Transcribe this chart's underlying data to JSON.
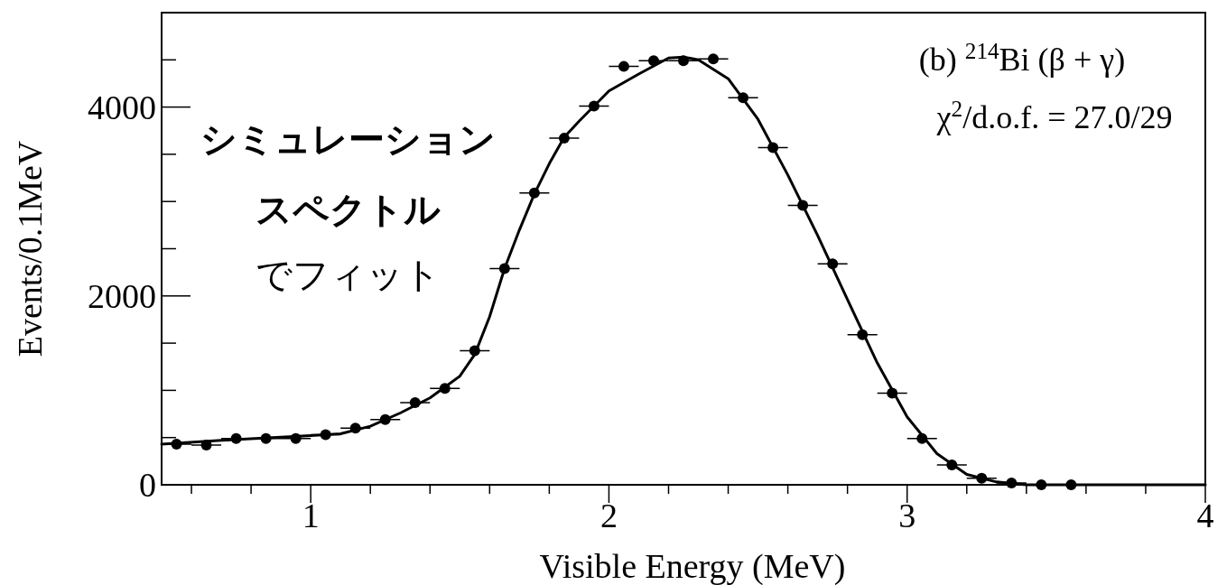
{
  "chart_data": {
    "type": "scatter",
    "xlabel": "Visible Energy (MeV)",
    "ylabel": "Events/0.1MeV",
    "xlim": [
      0.5,
      4
    ],
    "ylim": [
      0,
      5000
    ],
    "xticks": [
      {
        "value": 0.6,
        "label": null
      },
      {
        "value": 0.8,
        "label": null
      },
      1,
      {
        "value": 1.2,
        "label": null
      },
      {
        "value": 1.4,
        "label": null
      },
      {
        "value": 1.6,
        "label": null
      },
      {
        "value": 1.8,
        "label": null
      },
      2,
      {
        "value": 2.2,
        "label": null
      },
      {
        "value": 2.4,
        "label": null
      },
      {
        "value": 2.6,
        "label": null
      },
      {
        "value": 2.8,
        "label": null
      },
      3,
      {
        "value": 3.2,
        "label": null
      },
      {
        "value": 3.4,
        "label": null
      },
      {
        "value": 3.6,
        "label": null
      },
      {
        "value": 3.8,
        "label": null
      },
      4
    ],
    "yticks": [
      0,
      {
        "value": 500,
        "label": null
      },
      {
        "value": 1000,
        "label": null
      },
      {
        "value": 1500,
        "label": null
      },
      2000,
      {
        "value": 2500,
        "label": null
      },
      {
        "value": 3000,
        "label": null
      },
      {
        "value": 3500,
        "label": null
      },
      4000,
      {
        "value": 4500,
        "label": null
      }
    ],
    "grid": false,
    "series": [
      {
        "color": "#000000",
        "marker": "circle",
        "x": [
          0.55,
          0.65,
          0.75,
          0.85,
          0.95,
          1.05,
          1.15,
          1.25,
          1.35,
          1.45,
          1.55,
          1.65,
          1.75,
          1.85,
          1.95,
          2.05,
          2.15,
          2.25,
          2.35,
          2.45,
          2.55,
          2.65,
          2.75,
          2.85,
          2.95,
          3.05,
          3.15,
          3.25,
          3.35,
          3.45,
          3.55
        ],
        "values": [
          430,
          420,
          490,
          490,
          490,
          530,
          600,
          690,
          870,
          1020,
          1420,
          2290,
          3090,
          3670,
          4010,
          4430,
          4490,
          4490,
          4510,
          4100,
          3570,
          2960,
          2340,
          1590,
          970,
          490,
          210,
          70,
          20,
          0,
          0
        ],
        "xerrors": [
          0.05,
          0.05,
          0.05,
          0.05,
          0.05,
          0.05,
          0.05,
          0.05,
          0.05,
          0.05,
          0.05,
          0.05,
          0.05,
          0.05,
          0.05,
          0.05,
          0.05,
          0.05,
          0.05,
          0.05,
          0.05,
          0.05,
          0.05,
          0.05,
          0.05,
          0.05,
          0.05,
          0.05,
          0.05,
          0.05,
          0.05
        ]
      },
      {
        "type": "line",
        "color": "#000000",
        "line_style": "solid",
        "x": [
          0.5,
          0.7,
          1.0,
          1.1,
          1.2,
          1.3,
          1.4,
          1.5,
          1.55,
          1.6,
          1.65,
          1.7,
          1.75,
          1.8,
          1.85,
          1.9,
          2.0,
          2.1,
          2.2,
          2.25,
          2.3,
          2.4,
          2.5,
          2.6,
          2.7,
          2.8,
          2.9,
          3.0,
          3.1,
          3.2,
          3.3,
          3.4,
          3.5,
          4.0
        ],
        "values": [
          430,
          470,
          520,
          540,
          620,
          760,
          920,
          1150,
          1380,
          1780,
          2290,
          2700,
          3080,
          3400,
          3680,
          3850,
          4170,
          4350,
          4520,
          4530,
          4500,
          4300,
          3870,
          3280,
          2640,
          1960,
          1290,
          720,
          330,
          110,
          30,
          0,
          0,
          0
        ]
      }
    ],
    "annotations": [
      "(b)  $^{214}$Bi (β + γ)",
      "χ$^{2}$/d.o.f. = 27.0/29",
      "シミュレーション",
      "スペクトル",
      "でフィット"
    ]
  }
}
